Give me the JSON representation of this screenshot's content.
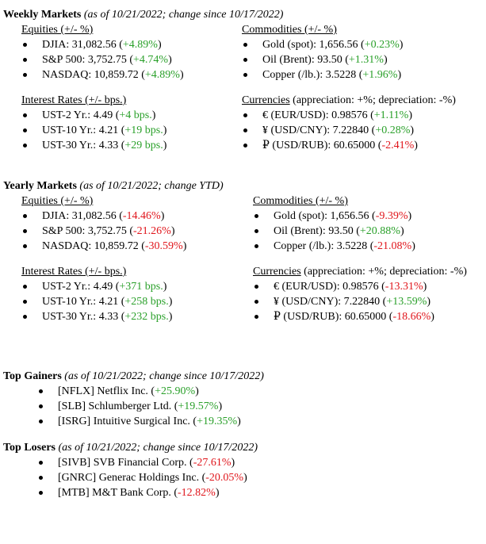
{
  "weekly": {
    "title": "Weekly Markets",
    "subtitle": "(as of 10/21/2022; change since 10/17/2022)",
    "equities": {
      "header": "Equities (+/- %)",
      "items": [
        {
          "label": "DJIA: 31,082.56 (",
          "change": "+4.89%",
          "close": ")",
          "dir": "pos"
        },
        {
          "label": "S&P 500: 3,752.75 (",
          "change": "+4.74%",
          "close": ")",
          "dir": "pos"
        },
        {
          "label": "NASDAQ: 10,859.72 (",
          "change": "+4.89%",
          "close": ")",
          "dir": "pos"
        }
      ]
    },
    "commodities": {
      "header": "Commodities (+/- %)",
      "items": [
        {
          "label": "Gold (spot): 1,656.56 (",
          "change": "+0.23%",
          "close": ")",
          "dir": "pos"
        },
        {
          "label": "Oil (Brent): 93.50 (",
          "change": "+1.31%",
          "close": ")",
          "dir": "pos"
        },
        {
          "label": "Copper (/lb.): 3.5228 (",
          "change": "+1.96%",
          "close": ")",
          "dir": "pos"
        }
      ]
    },
    "rates": {
      "header": "Interest Rates (+/- bps.)",
      "items": [
        {
          "label": "UST-2 Yr.: 4.49 (",
          "change": "+4 bps.",
          "close": ")",
          "dir": "pos"
        },
        {
          "label": "UST-10 Yr.: 4.21 (",
          "change": "+19 bps.",
          "close": ")",
          "dir": "pos"
        },
        {
          "label": "UST-30 Yr.: 4.33 (",
          "change": "+29 bps.",
          "close": ")",
          "dir": "pos"
        }
      ]
    },
    "currencies": {
      "header_underlined": "Currencies",
      "header_rest": " (appreciation: +%; depreciation: -%)",
      "items": [
        {
          "label": "€ (EUR/USD): 0.98576 (",
          "change": "+1.11%",
          "close": ")",
          "dir": "pos"
        },
        {
          "label": "¥ (USD/CNY): 7.22840 (",
          "change": "+0.28%",
          "close": ")",
          "dir": "pos"
        },
        {
          "label": "₽ (USD/RUB): 60.65000 (",
          "change": "-2.41%",
          "close": ")",
          "dir": "neg"
        }
      ]
    }
  },
  "yearly": {
    "title": "Yearly Markets",
    "subtitle": "(as of 10/21/2022; change YTD)",
    "equities": {
      "header": "Equities (+/- %)",
      "items": [
        {
          "label": "DJIA: 31,082.56 (",
          "change": "-14.46%",
          "close": ")",
          "dir": "neg"
        },
        {
          "label": "S&P 500: 3,752.75 (",
          "change": "-21.26%",
          "close": ")",
          "dir": "neg"
        },
        {
          "label": "NASDAQ: 10,859.72 (",
          "change": "-30.59%",
          "close": ")",
          "dir": "neg"
        }
      ]
    },
    "commodities": {
      "header": "Commodities (+/- %)",
      "items": [
        {
          "label": "Gold (spot): 1,656.56 (",
          "change": "-9.39%",
          "close": ")",
          "dir": "neg"
        },
        {
          "label": "Oil (Brent): 93.50 (",
          "change": "+20.88%",
          "close": ")",
          "dir": "pos"
        },
        {
          "label": "Copper (/lb.): 3.5228 (",
          "change": "-21.08%",
          "close": ")",
          "dir": "neg"
        }
      ]
    },
    "rates": {
      "header": "Interest Rates (+/- bps.)",
      "items": [
        {
          "label": "UST-2 Yr.: 4.49 (",
          "change": "+371 bps.",
          "close": ")",
          "dir": "pos"
        },
        {
          "label": "UST-10 Yr.: 4.21 (",
          "change": "+258 bps.",
          "close": ")",
          "dir": "pos"
        },
        {
          "label": "UST-30 Yr.: 4.33 (",
          "change": "+232 bps.",
          "close": ")",
          "dir": "pos"
        }
      ]
    },
    "currencies": {
      "header_underlined": "Currencies",
      "header_rest": " (appreciation: +%; depreciation: -%)",
      "items": [
        {
          "label": "€ (EUR/USD): 0.98576 (",
          "change": "-13.31%",
          "close": ")",
          "dir": "neg"
        },
        {
          "label": "¥ (USD/CNY): 7.22840 (",
          "change": "+13.59%",
          "close": ")",
          "dir": "pos"
        },
        {
          "label": "₽ (USD/RUB): 60.65000 (",
          "change": "-18.66%",
          "close": ")",
          "dir": "neg"
        }
      ]
    }
  },
  "gainers": {
    "title": "Top Gainers",
    "subtitle": "(as of 10/21/2022; change since 10/17/2022)",
    "items": [
      {
        "label": "[NFLX] Netflix Inc. (",
        "change": "+25.90%",
        "close": ")",
        "dir": "pos"
      },
      {
        "label": "[SLB] Schlumberger Ltd. (",
        "change": "+19.57%",
        "close": ")",
        "dir": "pos"
      },
      {
        "label": "[ISRG] Intuitive Surgical Inc. (",
        "change": "+19.35%",
        "close": ")",
        "dir": "pos"
      }
    ]
  },
  "losers": {
    "title": "Top Losers",
    "subtitle": "(as of 10/21/2022; change since 10/17/2022)",
    "items": [
      {
        "label": "[SIVB] SVB Financial Corp. (",
        "change": "-27.61%",
        "close": ")",
        "dir": "neg"
      },
      {
        "label": "[GNRC] Generac Holdings Inc. (",
        "change": "-20.05%",
        "close": ")",
        "dir": "neg"
      },
      {
        "label": "[MTB] M&T Bank Corp. (",
        "change": "-12.82%",
        "close": ")",
        "dir": "neg"
      }
    ]
  }
}
